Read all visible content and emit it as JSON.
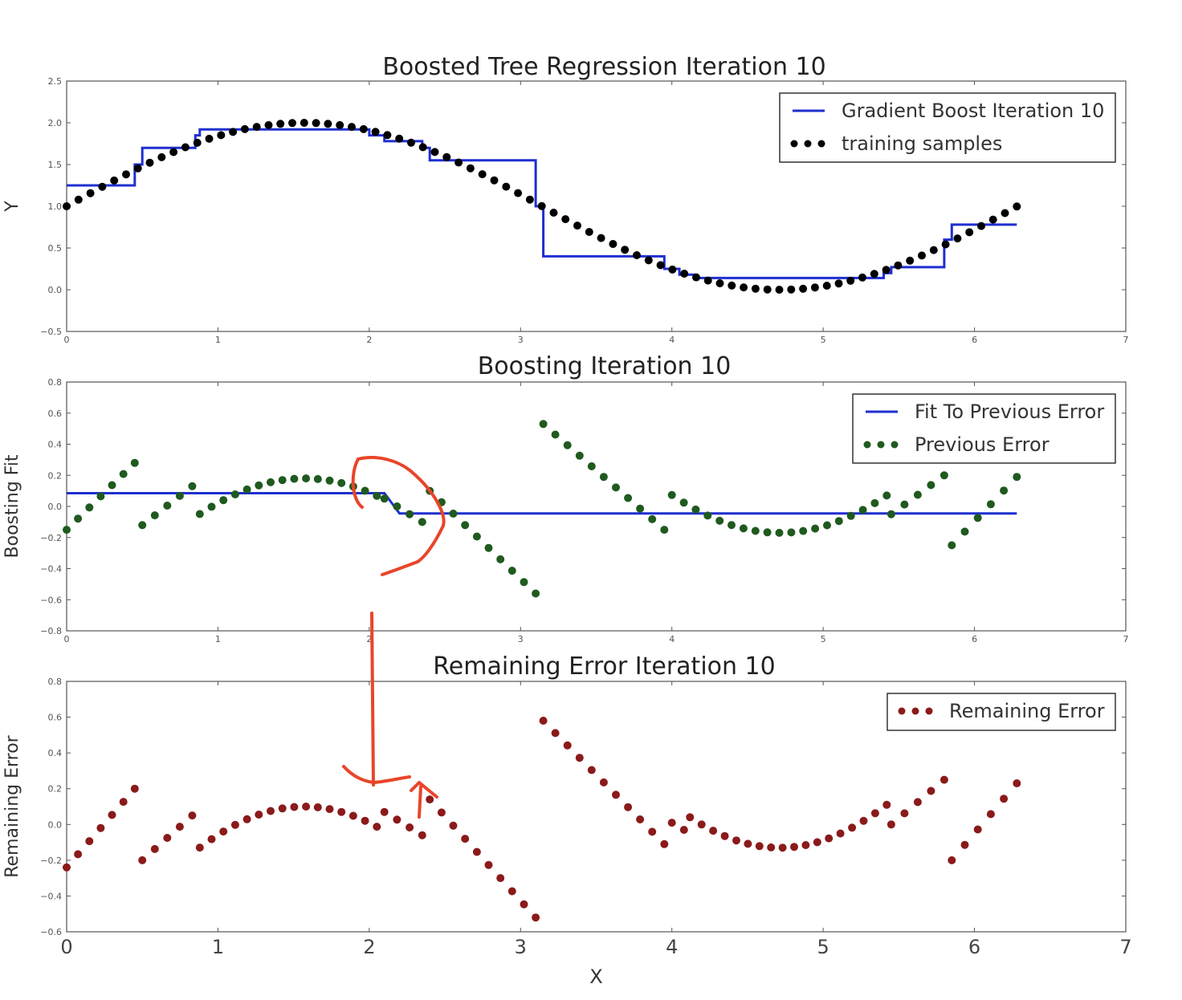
{
  "chart_data": [
    {
      "type": "line",
      "title": "Boosted Tree Regression Iteration 10",
      "xlabel": "",
      "ylabel": "Y",
      "xlim": [
        0,
        7
      ],
      "ylim": [
        -0.5,
        2.5
      ],
      "xticks": [
        "0",
        "1",
        "2",
        "3",
        "4",
        "5",
        "6",
        "7"
      ],
      "yticks": [
        "2.5",
        "2.0",
        "1.5",
        "1.0",
        "0.5",
        "0.0",
        "−0.5"
      ],
      "legend": "top-right",
      "series": [
        {
          "name": "Gradient Boost Iteration 10",
          "kind": "step",
          "color": "#1f2fd0",
          "x": [
            0,
            0.45,
            0.45,
            0.5,
            0.5,
            0.85,
            0.85,
            0.88,
            0.88,
            1.2,
            1.2,
            2.0,
            2.0,
            2.1,
            2.1,
            2.35,
            2.35,
            2.4,
            2.4,
            3.1,
            3.1,
            3.15,
            3.15,
            3.95,
            3.95,
            4.05,
            4.05,
            4.15,
            4.15,
            5.4,
            5.4,
            5.45,
            5.45,
            5.8,
            5.8,
            5.85,
            5.85,
            6.28
          ],
          "y": [
            1.25,
            1.25,
            1.5,
            1.5,
            1.7,
            1.7,
            1.85,
            1.85,
            1.92,
            1.92,
            1.92,
            1.92,
            1.85,
            1.85,
            1.78,
            1.78,
            1.7,
            1.7,
            1.55,
            1.55,
            1.0,
            1.0,
            0.4,
            0.4,
            0.25,
            0.25,
            0.18,
            0.18,
            0.14,
            0.14,
            0.2,
            0.2,
            0.27,
            0.27,
            0.6,
            0.6,
            0.78,
            0.78
          ]
        },
        {
          "name": "training samples",
          "kind": "scatter",
          "color": "#000000",
          "function": "1+sin(x)",
          "x_start": 0,
          "x_step": 0.0785,
          "count": 81
        }
      ]
    },
    {
      "type": "line",
      "title": "Boosting Iteration 10",
      "xlabel": "",
      "ylabel": "Boosting Fit",
      "xlim": [
        0,
        7
      ],
      "ylim": [
        -0.8,
        0.8
      ],
      "xticks": [
        "0",
        "1",
        "2",
        "3",
        "4",
        "5",
        "6",
        "7"
      ],
      "yticks": [
        "0.8",
        "0.6",
        "0.4",
        "0.2",
        "0.0",
        "−0.2",
        "−0.4",
        "−0.6",
        "−0.8"
      ],
      "legend": "top-right",
      "series": [
        {
          "name": "Fit To Previous Error",
          "kind": "step",
          "color": "#1f2fd0",
          "x": [
            0,
            2.1,
            2.2,
            6.28
          ],
          "y": [
            0.085,
            0.085,
            -0.045,
            -0.045
          ]
        },
        {
          "name": "Previous Error",
          "kind": "scatter",
          "color": "#1f5a1f",
          "segments": [
            {
              "x0": 0,
              "x1": 0.45,
              "y0": -0.15,
              "y1": 0.28
            },
            {
              "x0": 0.5,
              "x1": 0.83,
              "y0": -0.12,
              "y1": 0.13
            },
            {
              "x0": 0.88,
              "x1": 2.05,
              "curve": "1+sin(x)-1.82"
            },
            {
              "x0": 2.1,
              "x1": 2.35,
              "y0": 0.05,
              "y1": -0.1
            },
            {
              "x0": 2.4,
              "x1": 3.1,
              "y0": 0.1,
              "y1": -0.56
            },
            {
              "x0": 3.15,
              "x1": 3.95,
              "y0": 0.53,
              "y1": -0.15
            },
            {
              "x0": 4.0,
              "x1": 5.42,
              "curve": "1+sin(x)-0.17"
            },
            {
              "x0": 5.45,
              "x1": 5.8,
              "y0": -0.05,
              "y1": 0.2
            },
            {
              "x0": 5.85,
              "x1": 6.28,
              "y0": -0.25,
              "y1": 0.19
            }
          ]
        }
      ]
    },
    {
      "type": "scatter",
      "title": "Remaining Error Iteration 10",
      "xlabel": "X",
      "ylabel": "Remaining Error",
      "xlim": [
        0,
        7
      ],
      "ylim": [
        -0.6,
        0.8
      ],
      "xticks": [
        "0",
        "1",
        "2",
        "3",
        "4",
        "5",
        "6",
        "7"
      ],
      "yticks": [
        "0.8",
        "0.6",
        "0.4",
        "0.2",
        "0.0",
        "−0.2",
        "−0.4",
        "−0.6"
      ],
      "legend": "top-right",
      "series": [
        {
          "name": "Remaining Error",
          "kind": "scatter",
          "color": "#8b1a1a",
          "segments": [
            {
              "x0": 0,
              "x1": 0.45,
              "y0": -0.24,
              "y1": 0.2
            },
            {
              "x0": 0.5,
              "x1": 0.83,
              "y0": -0.2,
              "y1": 0.05
            },
            {
              "x0": 0.88,
              "x1": 2.05,
              "curve": "1+sin(x)-1.9"
            },
            {
              "x0": 2.1,
              "x1": 2.35,
              "y0": 0.07,
              "y1": -0.06
            },
            {
              "x0": 2.4,
              "x1": 3.1,
              "y0": 0.14,
              "y1": -0.52
            },
            {
              "x0": 3.15,
              "x1": 3.95,
              "y0": 0.58,
              "y1": -0.11
            },
            {
              "x0": 4.0,
              "x1": 4.08,
              "y0": 0.01,
              "y1": -0.03
            },
            {
              "x0": 4.12,
              "x1": 5.42,
              "curve": "1+sin(x)-0.13"
            },
            {
              "x0": 5.45,
              "x1": 5.8,
              "y0": 0.0,
              "y1": 0.25
            },
            {
              "x0": 5.85,
              "x1": 6.28,
              "y0": -0.2,
              "y1": 0.23
            }
          ]
        }
      ]
    }
  ],
  "annotations": {
    "color": "#e8452a",
    "marks": [
      "curved-arrow",
      "down-arrow",
      "up-arrow"
    ]
  }
}
